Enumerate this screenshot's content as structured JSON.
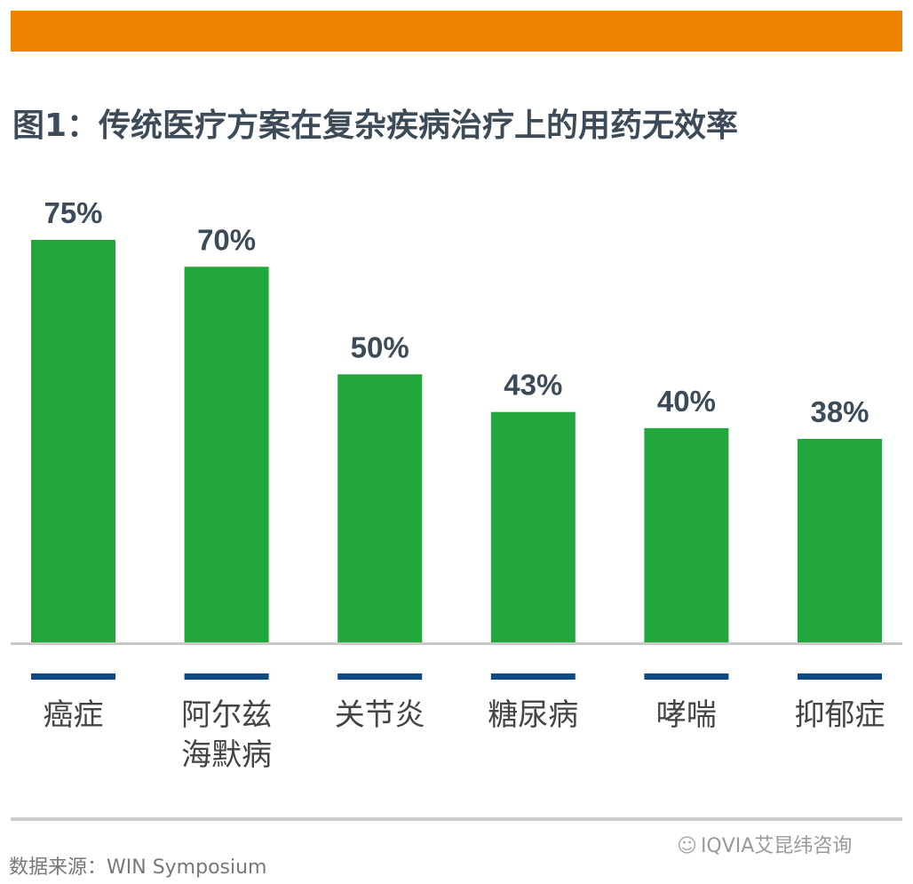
{
  "header": {
    "title": "图1：传统医疗方案在复杂疾病治疗上的用药无效率"
  },
  "chart_data": {
    "type": "bar",
    "title": "图1：传统医疗方案在复杂疾病治疗上的用药无效率",
    "categories": [
      [
        "癌症"
      ],
      [
        "阿尔兹",
        "海默病"
      ],
      [
        "关节炎"
      ],
      [
        "糖尿病"
      ],
      [
        "哮喘"
      ],
      [
        "抑郁症"
      ]
    ],
    "values": [
      75,
      70,
      50,
      43,
      40,
      38
    ],
    "data_labels": [
      "75%",
      "70%",
      "50%",
      "43%",
      "40%",
      "38%"
    ],
    "ylim": [
      0,
      100
    ],
    "xlabel": "",
    "ylabel": "",
    "grid": false,
    "colors": {
      "bar": "#21A73C",
      "marker": "#0E4B84",
      "axis": "#c8c8c8",
      "label": "#3d4b59",
      "category": "#444444"
    }
  },
  "footer": {
    "source": "数据来源：WIN Symposium",
    "brand": "IQVIA艾昆纬咨询",
    "brand_icon": "wechat-icon"
  }
}
